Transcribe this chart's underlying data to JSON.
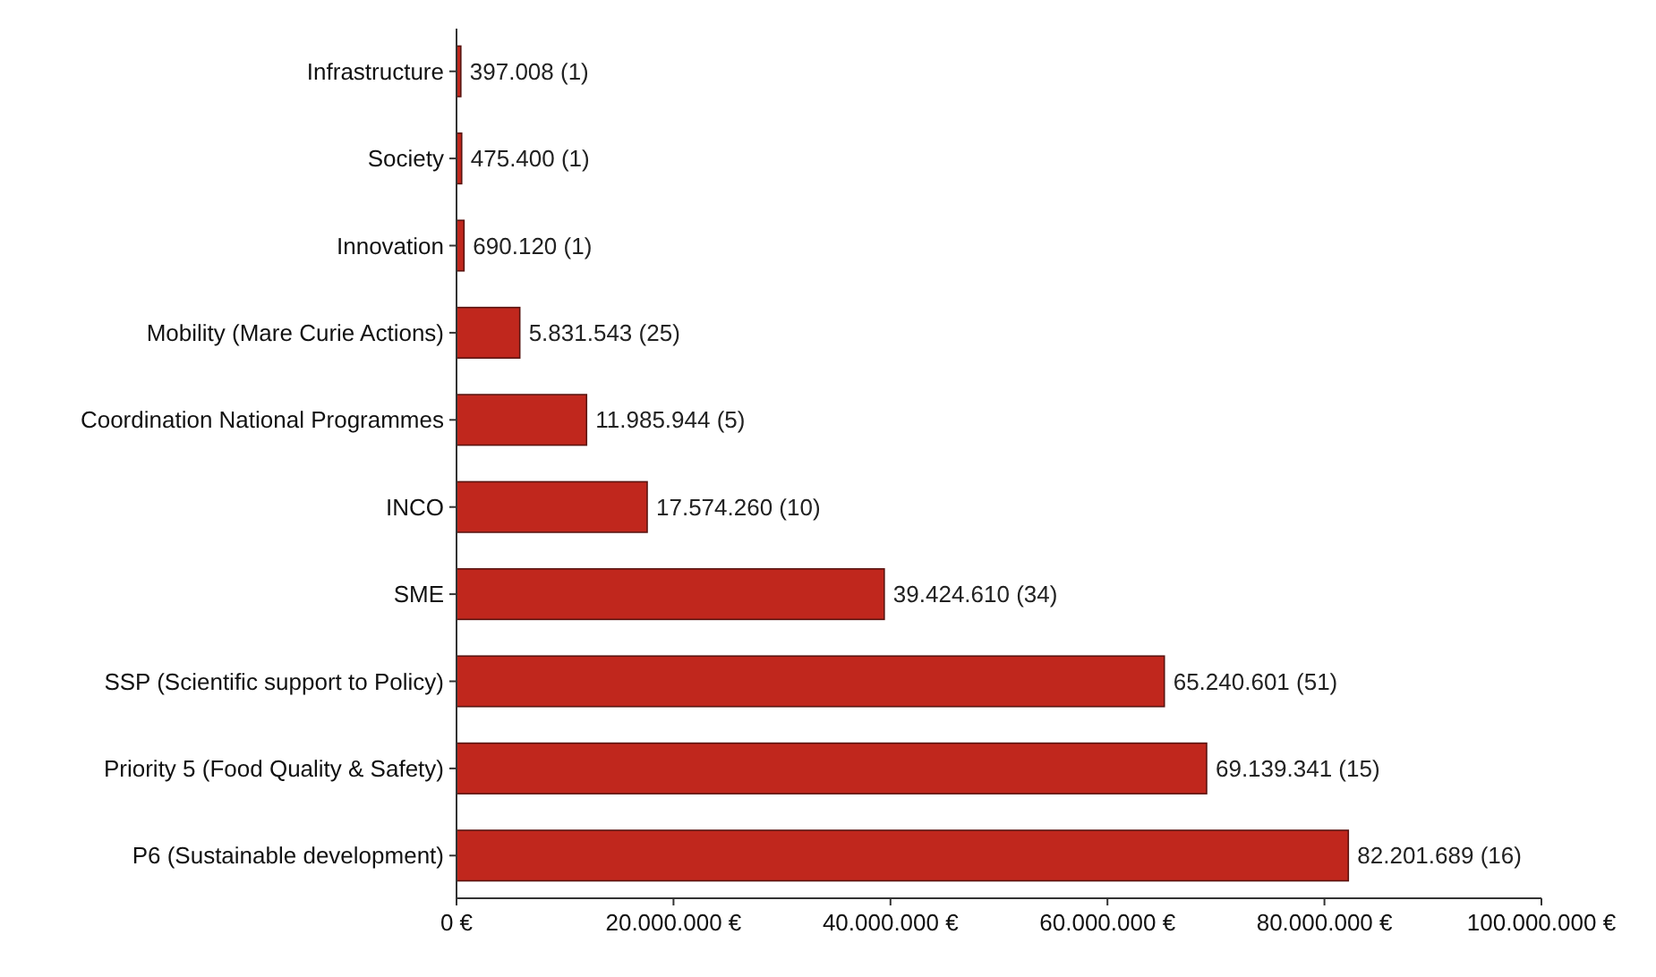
{
  "chart_data": {
    "type": "bar",
    "orientation": "horizontal",
    "categories": [
      "Infrastructure",
      "Society",
      "Innovation",
      "Mobility (Mare Curie Actions)",
      "Coordination National Programmes",
      "INCO",
      "SME",
      "SSP (Scientific support to Policy)",
      "Priority 5 (Food Quality & Safety)",
      "P6 (Sustainable development)"
    ],
    "values": [
      397008,
      475400,
      690120,
      5831543,
      11985944,
      17574260,
      39424610,
      65240601,
      69139341,
      82201689
    ],
    "value_labels": [
      "397.008 (1)",
      "475.400 (1)",
      "690.120 (1)",
      "5.831.543 (25)",
      "11.985.944 (5)",
      "17.574.260 (10)",
      "39.424.610 (34)",
      "65.240.601 (51)",
      "69.139.341 (15)",
      "82.201.689 (16)"
    ],
    "color": "#c0271d",
    "xlim": [
      0,
      100000000
    ],
    "xticks": [
      {
        "value": 0,
        "label": "0 €"
      },
      {
        "value": 20000000,
        "label": "20.000.000 €"
      },
      {
        "value": 40000000,
        "label": "40.000.000 €"
      },
      {
        "value": 60000000,
        "label": "60.000.000 €"
      },
      {
        "value": 80000000,
        "label": "80.000.000 €"
      },
      {
        "value": 100000000,
        "label": "100.000.000 €"
      }
    ],
    "grid": false
  }
}
